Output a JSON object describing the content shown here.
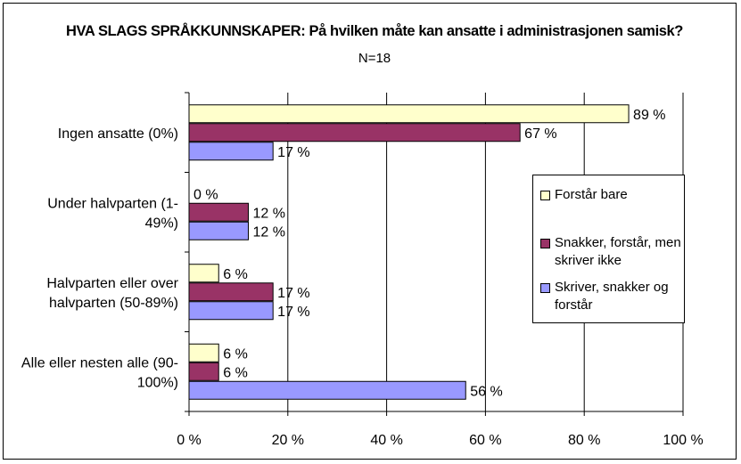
{
  "title": {
    "main": "HVA SLAGS SPRÅKKUNNSKAPER:  På hvilken måte kan ansatte i administrasjonen samisk?",
    "suffix": " N=18"
  },
  "chart_data": {
    "type": "bar",
    "orientation": "horizontal",
    "categories": [
      [
        "Ingen ansatte (0%)"
      ],
      [
        "Under halvparten (1-",
        "49%)"
      ],
      [
        "Halvparten eller over",
        "halvparten (50-89%)"
      ],
      [
        "Alle eller nesten alle (90-",
        "100%)"
      ]
    ],
    "series": [
      {
        "name": "Forstår bare",
        "color": "#ffffcc",
        "values": [
          89,
          0,
          6,
          6
        ],
        "labels": [
          "89 %",
          "0 %",
          "6 %",
          "6 %"
        ]
      },
      {
        "name": "Snakker, forstår, men skriver ikke",
        "color": "#993366",
        "values": [
          67,
          12,
          17,
          6
        ],
        "labels": [
          "67 %",
          "12 %",
          "17 %",
          "6 %"
        ]
      },
      {
        "name": "Skriver, snakker og forstår",
        "color": "#9999ff",
        "values": [
          17,
          12,
          17,
          56
        ],
        "labels": [
          "17 %",
          "12 %",
          "17 %",
          "56 %"
        ]
      }
    ],
    "xlim": [
      0,
      100
    ],
    "xticks": [
      0,
      20,
      40,
      60,
      80,
      100
    ],
    "xtick_labels": [
      "0 %",
      "20 %",
      "40 %",
      "60 %",
      "80 %",
      "100 %"
    ],
    "grid": true,
    "legend_position": "right",
    "xlabel": "",
    "ylabel": ""
  }
}
